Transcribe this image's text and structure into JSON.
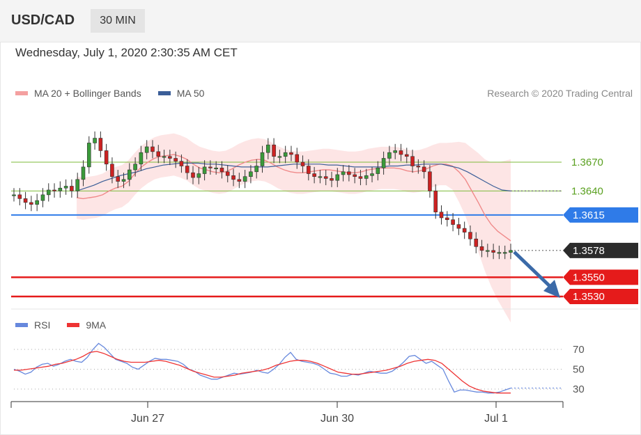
{
  "header": {
    "symbol": "USD/CAD",
    "timeframe": "30 MIN"
  },
  "datetime": "Wednesday, July 1, 2020 2:30:35 AM CET",
  "credit": "Research © 2020 Trading Central",
  "colors": {
    "ma20": "#f08a8a",
    "ma50": "#3b5e98",
    "band": "#fde0e0",
    "resistance": "#7dbb3a",
    "pivot": "#2f7be8",
    "support": "#e51b1b",
    "current": "#2b2b2b",
    "candle_up": "#3a9a3a",
    "candle_down": "#cc2222",
    "rsi": "#6688dd",
    "rsi_ma": "#ee3333"
  },
  "chart_data": [
    {
      "type": "line",
      "subtype": "candlestick",
      "title": "",
      "legend": [
        {
          "name": "MA 20 + Bollinger Bands",
          "color": "#f08a8a"
        },
        {
          "name": "MA 50",
          "color": "#3b5e98"
        }
      ],
      "x_ticks": [
        "Jun 27",
        "Jun 30",
        "Jul 1"
      ],
      "ylim": [
        1.3525,
        1.3695
      ],
      "levels": [
        {
          "label": "1.3670",
          "value": 1.367,
          "kind": "resistance"
        },
        {
          "label": "1.3640",
          "value": 1.364,
          "kind": "resistance"
        },
        {
          "label": "1.3615",
          "value": 1.3615,
          "kind": "pivot"
        },
        {
          "label": "1.3578",
          "value": 1.3578,
          "kind": "current"
        },
        {
          "label": "1.3550",
          "value": 1.355,
          "kind": "support"
        },
        {
          "label": "1.3530",
          "value": 1.353,
          "kind": "support"
        }
      ],
      "series": [
        {
          "name": "Price",
          "values": [
            1.3636,
            1.3632,
            1.3628,
            1.3626,
            1.363,
            1.3636,
            1.3641,
            1.364,
            1.3643,
            1.3645,
            1.364,
            1.3652,
            1.3665,
            1.369,
            1.3695,
            1.3682,
            1.3668,
            1.3655,
            1.365,
            1.3652,
            1.3662,
            1.3668,
            1.368,
            1.3686,
            1.3681,
            1.3676,
            1.3676,
            1.3674,
            1.3671,
            1.3666,
            1.3659,
            1.3654,
            1.3658,
            1.3665,
            1.3664,
            1.3664,
            1.366,
            1.3656,
            1.3652,
            1.365,
            1.3655,
            1.366,
            1.3666,
            1.368,
            1.3688,
            1.3676,
            1.3676,
            1.368,
            1.3678,
            1.367,
            1.3666,
            1.3658,
            1.3655,
            1.3655,
            1.3653,
            1.3651,
            1.3657,
            1.366,
            1.3657,
            1.3655,
            1.3653,
            1.3656,
            1.3658,
            1.3664,
            1.3674,
            1.368,
            1.3682,
            1.3678,
            1.3676,
            1.3666,
            1.3665,
            1.366,
            1.364,
            1.3618,
            1.3612,
            1.361,
            1.3605,
            1.3601,
            1.3597,
            1.359,
            1.3582,
            1.3578,
            1.3578,
            1.3576,
            1.3576,
            1.3576,
            1.3578
          ]
        },
        {
          "name": "MA 20",
          "values": [
            1.3633,
            1.3632,
            1.3633,
            1.3634,
            1.3636,
            1.364,
            1.3643,
            1.3645,
            1.365,
            1.3658,
            1.3665,
            1.367,
            1.3674,
            1.3676,
            1.3677,
            1.3678,
            1.3676,
            1.3673,
            1.3668,
            1.3664,
            1.3662,
            1.366,
            1.3659,
            1.366,
            1.3663,
            1.3667,
            1.367,
            1.3672,
            1.3673,
            1.3672,
            1.3669,
            1.3665,
            1.3662,
            1.366,
            1.3659,
            1.3659,
            1.366,
            1.3661,
            1.3662,
            1.3662,
            1.3661,
            1.366,
            1.3659,
            1.3659,
            1.366,
            1.3662,
            1.3663,
            1.3664,
            1.3664,
            1.3664,
            1.3663,
            1.3661,
            1.366,
            1.3661,
            1.3663,
            1.3666,
            1.3668,
            1.3668,
            1.3666,
            1.366,
            1.3652,
            1.364,
            1.3628,
            1.3615,
            1.3605,
            1.3598,
            1.3593,
            1.3588
          ]
        },
        {
          "name": "MA 50",
          "values": [
            1.364,
            1.3643,
            1.3646,
            1.365,
            1.3653,
            1.3656,
            1.3658,
            1.366,
            1.3663,
            1.3665,
            1.3667,
            1.3668,
            1.3669,
            1.3669,
            1.3669,
            1.3668,
            1.3668,
            1.3667,
            1.3666,
            1.3665,
            1.3665,
            1.3665,
            1.3665,
            1.3666,
            1.3667,
            1.3668,
            1.3668,
            1.3668,
            1.3668,
            1.3667,
            1.3667,
            1.3666,
            1.3665,
            1.3665,
            1.3665,
            1.3665,
            1.3666,
            1.3666,
            1.3667,
            1.3667,
            1.3668,
            1.3668,
            1.3668,
            1.3666,
            1.3664,
            1.366,
            1.3655,
            1.365,
            1.3645,
            1.3641,
            1.364
          ]
        }
      ]
    },
    {
      "type": "line",
      "title": "",
      "legend": [
        {
          "name": "RSI",
          "color": "#6688dd"
        },
        {
          "name": "9MA",
          "color": "#ee3333"
        }
      ],
      "y_ticks": [
        "70",
        "50",
        "30"
      ],
      "ylim": [
        20,
        80
      ],
      "series": [
        {
          "name": "RSI",
          "values": [
            50,
            48,
            45,
            47,
            52,
            55,
            56,
            53,
            55,
            58,
            60,
            58,
            57,
            62,
            70,
            76,
            72,
            66,
            60,
            58,
            56,
            52,
            50,
            54,
            58,
            61,
            60,
            60,
            59,
            58,
            55,
            50,
            48,
            44,
            42,
            40,
            40,
            42,
            44,
            46,
            45,
            46,
            47,
            49,
            47,
            46,
            50,
            55,
            62,
            67,
            60,
            58,
            57,
            56,
            54,
            50,
            46,
            45,
            43,
            43,
            45,
            44,
            46,
            48,
            47,
            46,
            46,
            48,
            52,
            57,
            63,
            64,
            60,
            56,
            58,
            54,
            50,
            38,
            27,
            29,
            29,
            28,
            27,
            27,
            26,
            26,
            27,
            29,
            31
          ]
        },
        {
          "name": "9MA",
          "values": [
            49,
            49,
            50,
            51,
            52,
            53,
            55,
            56,
            58,
            60,
            63,
            67,
            68,
            66,
            63,
            60,
            58,
            57,
            57,
            57,
            58,
            59,
            58,
            56,
            54,
            51,
            48,
            46,
            44,
            42,
            42,
            43,
            44,
            46,
            47,
            48,
            49,
            51,
            54,
            56,
            58,
            59,
            59,
            58,
            56,
            53,
            50,
            47,
            46,
            45,
            45,
            46,
            47,
            48,
            49,
            51,
            53,
            56,
            58,
            59,
            60,
            59,
            56,
            50,
            44,
            38,
            33,
            30,
            28,
            27,
            26,
            26,
            26
          ]
        }
      ]
    }
  ]
}
